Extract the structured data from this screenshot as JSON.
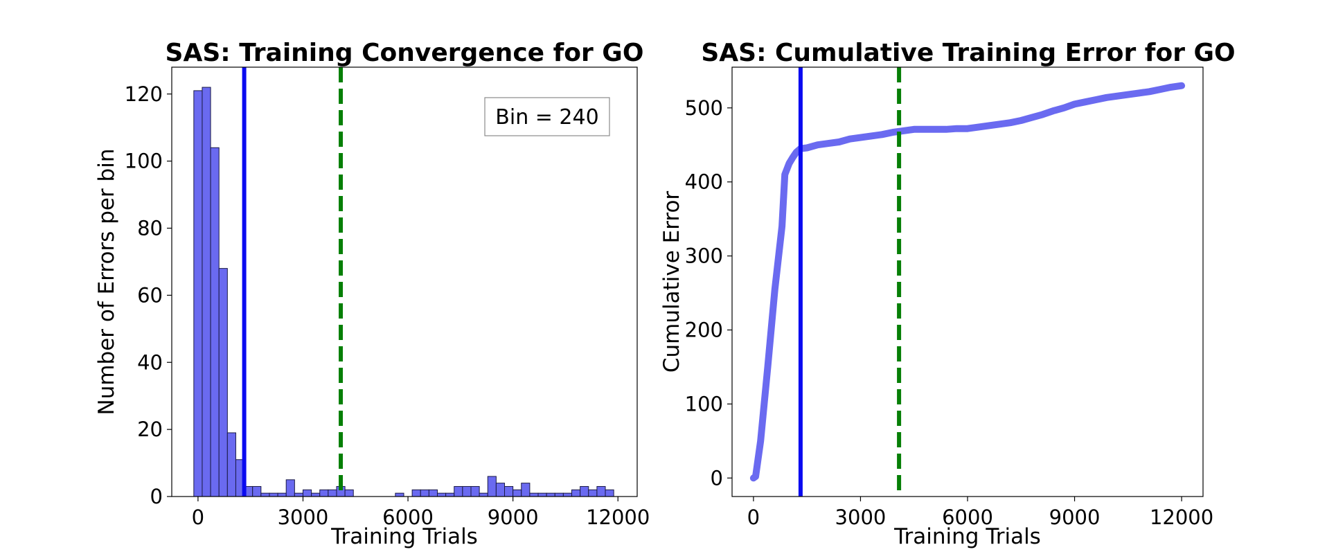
{
  "colors": {
    "bar_fill": "#6a6af0",
    "bar_edge": "#1a1a44",
    "cumulative_line": "#6a6af0",
    "blue_marker": "#0a0af0",
    "green_marker": "#067f06"
  },
  "chart_data": [
    {
      "type": "bar",
      "subtype": "histogram",
      "title": "SAS: Training Convergence for GO",
      "xlabel": "Training Trials",
      "ylabel": "Number of Errors per bin",
      "annotation": "Bin = 240",
      "annotation_placement": "top-right",
      "bin_width": 240,
      "bin_start": -120,
      "values": [
        121,
        122,
        104,
        68,
        19,
        11,
        3,
        3,
        1,
        1,
        1,
        5,
        1,
        2,
        1,
        2,
        2,
        3,
        2,
        0,
        0,
        0,
        0,
        0,
        1,
        0,
        2,
        2,
        2,
        1,
        1,
        3,
        3,
        3,
        1,
        6,
        4,
        3,
        2,
        4,
        1,
        1,
        1,
        1,
        1,
        2,
        3,
        2,
        3,
        2
      ],
      "xlim": [
        -750,
        12550
      ],
      "ylim": [
        0,
        128
      ],
      "xticks": [
        0,
        3000,
        6000,
        9000,
        12000
      ],
      "xtick_labels": [
        "0",
        "3000",
        "6000",
        "9000",
        "12000"
      ],
      "yticks": [
        0,
        20,
        40,
        60,
        80,
        100,
        120
      ],
      "ytick_labels": [
        "0",
        "20",
        "40",
        "60",
        "80",
        "100",
        "120"
      ],
      "vlines": [
        {
          "x": 1320,
          "style": "solid",
          "color": "blue"
        },
        {
          "x": 4080,
          "style": "dashed",
          "color": "green"
        }
      ],
      "grid": false
    },
    {
      "type": "line",
      "title": "SAS: Cumulative Training Error for GO",
      "xlabel": "Training Trials",
      "ylabel": "Cumulative Error",
      "x": [
        0,
        60,
        200,
        400,
        600,
        800,
        880,
        1000,
        1100,
        1200,
        1320,
        1500,
        1800,
        2100,
        2400,
        2700,
        3000,
        3300,
        3600,
        3900,
        4200,
        4500,
        4800,
        5100,
        5400,
        5700,
        6000,
        6300,
        6600,
        6900,
        7200,
        7500,
        7800,
        8100,
        8400,
        8700,
        9000,
        9300,
        9600,
        9900,
        10200,
        10500,
        10800,
        11100,
        11400,
        11700,
        12000
      ],
      "y": [
        0,
        2,
        50,
        150,
        255,
        340,
        410,
        425,
        433,
        440,
        445,
        446,
        450,
        452,
        454,
        458,
        460,
        462,
        464,
        467,
        469,
        471,
        471,
        471,
        471,
        472,
        472,
        474,
        476,
        478,
        480,
        483,
        487,
        491,
        496,
        500,
        505,
        508,
        511,
        514,
        516,
        518,
        520,
        522,
        525,
        528,
        530
      ],
      "xlim": [
        -600,
        12600
      ],
      "ylim": [
        -25,
        555
      ],
      "xticks": [
        0,
        3000,
        6000,
        9000,
        12000
      ],
      "xtick_labels": [
        "0",
        "3000",
        "6000",
        "9000",
        "12000"
      ],
      "yticks": [
        0,
        100,
        200,
        300,
        400,
        500
      ],
      "ytick_labels": [
        "0",
        "100",
        "200",
        "300",
        "400",
        "500"
      ],
      "vlines": [
        {
          "x": 1320,
          "style": "solid",
          "color": "blue"
        },
        {
          "x": 4080,
          "style": "dashed",
          "color": "green"
        }
      ],
      "grid": false
    }
  ]
}
